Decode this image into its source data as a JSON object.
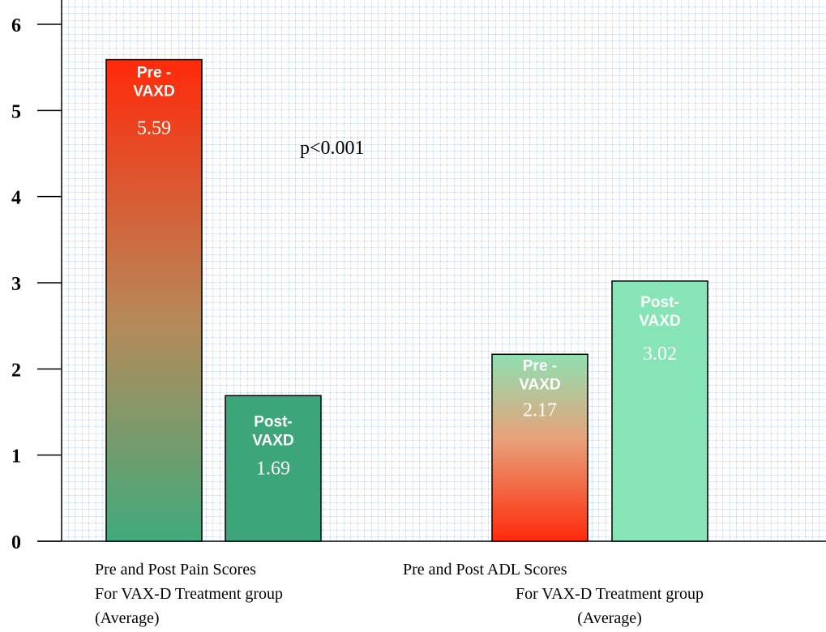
{
  "chart_data": {
    "type": "bar",
    "title": "",
    "xlabel": "",
    "ylabel": "",
    "ylim": [
      0,
      6
    ],
    "y_ticks": [
      "0",
      "1",
      "2",
      "3",
      "4",
      "5",
      "6"
    ],
    "grid": true,
    "annotation": "p<0.001",
    "groups": [
      {
        "label_lines": [
          "Pre and Post Pain Scores",
          "For VAX-D Treatment group",
          "(Average)"
        ],
        "bars": [
          {
            "label_lines": [
              "Pre -",
              "VAXD"
            ],
            "value_label": "5.59",
            "value": 5.59
          },
          {
            "label_lines": [
              "Post-",
              "VAXD"
            ],
            "value_label": "1.69",
            "value": 1.69
          }
        ]
      },
      {
        "label_lines": [
          "Pre and Post ADL Scores",
          "For VAX-D Treatment group",
          "(Average)"
        ],
        "bars": [
          {
            "label_lines": [
              "Pre -",
              "VAXD"
            ],
            "value_label": "2.17",
            "value": 2.17
          },
          {
            "label_lines": [
              "Post-",
              "VAXD"
            ],
            "value_label": "3.02",
            "value": 3.02
          }
        ]
      }
    ]
  },
  "colors": {
    "grid": "#a9c4e8",
    "bar_red": "#ff3010",
    "bar_green": "#45a87a",
    "bar_dark_green": "#3da57a",
    "bar_light_green": "#86e4b6",
    "axis": "#000000"
  }
}
